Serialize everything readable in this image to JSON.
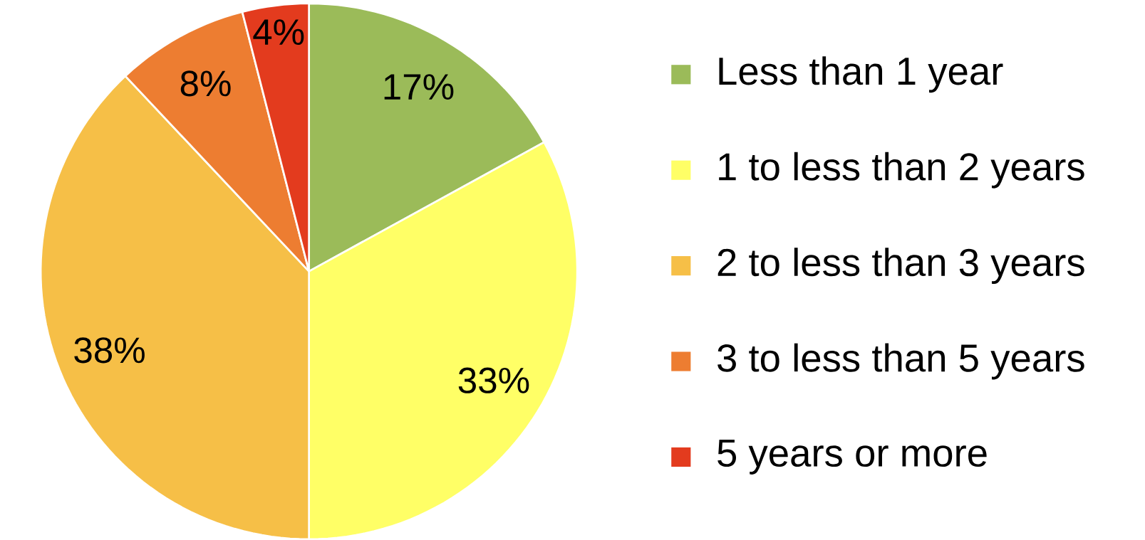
{
  "chart_data": {
    "type": "pie",
    "categories": [
      "Less than 1 year",
      "1 to less than 2 years",
      "2 to less than 3 years",
      "3 to less than 5 years",
      "5 years or more"
    ],
    "values": [
      17,
      33,
      38,
      8,
      4
    ],
    "colors": [
      "#9bbb59",
      "#ffff66",
      "#f6bf47",
      "#ed7d31",
      "#e33b1e"
    ],
    "value_labels": [
      "17%",
      "33%",
      "38%",
      "8%",
      "4%"
    ],
    "legend": "right"
  }
}
